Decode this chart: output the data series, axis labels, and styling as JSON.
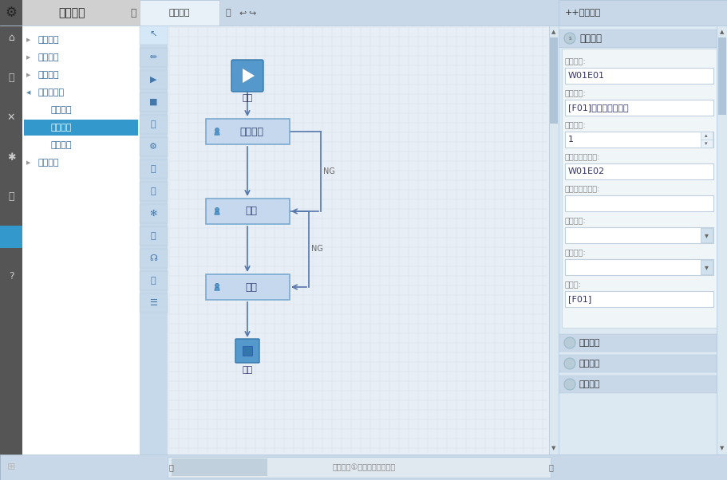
{
  "fig_width": 9.12,
  "fig_height": 6.02,
  "dpi": 100,
  "bg_color": "#d4e3ef",
  "left_icon_strip_bg": "#555555",
  "nav_panel_bg": "#ffffff",
  "toolbar_bg": "#c5d9eb",
  "canvas_bg": "#e8eef5",
  "right_panel_bg": "#dce8f2",
  "header_bg": "#c8d8e8",
  "nav_header_bg": "#d0d0d0",
  "left_strip_header_bg": "#555555",
  "tab_bg": "#e8f0f8",
  "footer_bg": "#c8d8e8",
  "title": "请假流程",
  "top_header_title": "系统管理",
  "event_panel_title": "++事件属性",
  "basic_info_title": "基本资料",
  "menu_items": [
    {
      "text": "基础管理",
      "indent": 0,
      "selected": false,
      "expanded": false,
      "arrow": "right"
    },
    {
      "text": "数据整理",
      "indent": 0,
      "selected": false,
      "expanded": false,
      "arrow": "right"
    },
    {
      "text": "权限管理",
      "indent": 0,
      "selected": false,
      "expanded": false,
      "arrow": "right"
    },
    {
      "text": "工作流管理",
      "indent": 0,
      "selected": false,
      "expanded": true,
      "arrow": "down"
    },
    {
      "text": "流程角色",
      "indent": 1,
      "selected": false,
      "expanded": false,
      "arrow": "none"
    },
    {
      "text": "流程设计",
      "indent": 1,
      "selected": true,
      "expanded": false,
      "arrow": "none"
    },
    {
      "text": "流程日志",
      "indent": 1,
      "selected": false,
      "expanded": false,
      "arrow": "none"
    },
    {
      "text": "日志管理",
      "indent": 0,
      "selected": false,
      "expanded": false,
      "arrow": "right"
    }
  ],
  "form_fields": [
    {
      "label": "事件编号:",
      "value": "W01E01",
      "has_dropdown": false,
      "has_spin": false
    },
    {
      "label": "事件名称:",
      "value": "[F01]提交的请假申请",
      "has_dropdown": false,
      "has_spin": false
    },
    {
      "label": "事件序号:",
      "value": "1",
      "has_dropdown": false,
      "has_spin": true
    },
    {
      "label": "通过后转向事件:",
      "value": "W01E02",
      "has_dropdown": false,
      "has_spin": false
    },
    {
      "label": "未通过转向事件:",
      "value": "",
      "has_dropdown": false,
      "has_spin": false
    },
    {
      "label": "执行部门:",
      "value": "",
      "has_dropdown": true,
      "has_spin": false
    },
    {
      "label": "执行角色:",
      "value": "",
      "has_dropdown": true,
      "has_spin": false
    },
    {
      "label": "执行人:",
      "value": "[F01]",
      "has_dropdown": false,
      "has_spin": false
    }
  ],
  "bottom_sections": [
    "流程触发",
    "流程提醒",
    "流程选项"
  ],
  "node_fill": "#c5d8ee",
  "node_border": "#7aaad0",
  "node_text_color": "#334477",
  "arrow_color": "#5577aa",
  "start_fill": "#5599cc",
  "end_fill": "#5599cc",
  "selected_menu_bg": "#3399cc",
  "selected_menu_fg": "#ffffff",
  "menu_fg": "#336699",
  "label_fg": "#888888",
  "footer_text": "天庭社区①淡蓝时光侵你心海"
}
